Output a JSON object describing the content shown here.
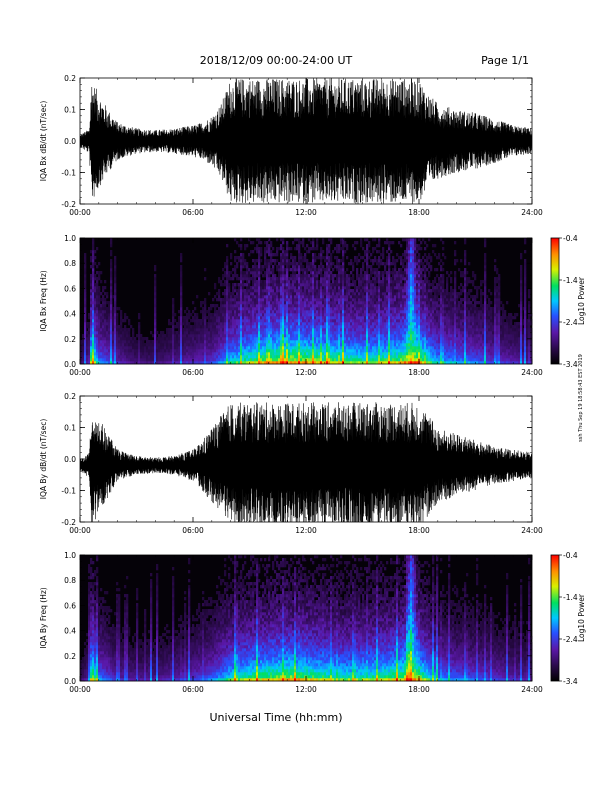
{
  "page": {
    "title": "2018/12/09   00:00-24:00 UT",
    "page_label": "Page 1/1",
    "side_stamp": "ssh Thu Sep 19 18:58:43 EST 2019",
    "xlabel": "Universal Time (hh:mm)"
  },
  "colors": {
    "trace": "#000000",
    "spectrogram_background": "#050208",
    "colorbar_stops": [
      "#000000",
      "#2a0a4a",
      "#5a18a8",
      "#2850ff",
      "#00c8ff",
      "#00e060",
      "#d8f000",
      "#ff9000",
      "#ff0000"
    ]
  },
  "chart_data": [
    {
      "type": "line",
      "name": "dBx/dt time series",
      "ylabel": "IQA Bx dB/dt (nT/sec)",
      "x_ticks": [
        "00:00",
        "06:00",
        "12:00",
        "18:00",
        "24:00"
      ],
      "xlim": [
        0,
        24
      ],
      "ylim": [
        -0.2,
        0.2
      ],
      "y_ticks": [
        -0.2,
        -0.1,
        0.0,
        0.1,
        0.2
      ],
      "y_tick_labels": [
        "-0.2",
        "-0.1",
        "0.0",
        "0.1",
        "0.2"
      ],
      "envelope_hours": [
        0,
        0.5,
        0.6,
        1.0,
        1.5,
        2.0,
        3.0,
        4.0,
        5.0,
        6.0,
        6.5,
        7.0,
        7.5,
        8.0,
        8.5,
        9.0,
        10.0,
        11.0,
        12.0,
        13.0,
        14.0,
        15.0,
        16.0,
        16.5,
        17.0,
        17.5,
        18.0,
        18.5,
        19.0,
        20.0,
        21.0,
        22.0,
        23.0,
        24.0
      ],
      "envelope_amplitude": [
        0.02,
        0.04,
        0.2,
        0.15,
        0.1,
        0.06,
        0.04,
        0.035,
        0.04,
        0.05,
        0.06,
        0.08,
        0.12,
        0.2,
        0.2,
        0.2,
        0.2,
        0.2,
        0.2,
        0.2,
        0.2,
        0.2,
        0.2,
        0.2,
        0.2,
        0.2,
        0.2,
        0.15,
        0.12,
        0.1,
        0.09,
        0.07,
        0.05,
        0.04
      ],
      "baseline": 0.0
    },
    {
      "type": "heatmap",
      "name": "Bx spectrogram",
      "ylabel": "IQA Bx Freq (Hz)",
      "x_ticks": [
        "00:00",
        "06:00",
        "12:00",
        "18:00",
        "24:00"
      ],
      "xlim": [
        0,
        24
      ],
      "ylim": [
        0.0,
        1.0
      ],
      "y_ticks": [
        0.0,
        0.2,
        0.4,
        0.6,
        0.8,
        1.0
      ],
      "y_tick_labels": [
        "0.0",
        "0.2",
        "0.4",
        "0.6",
        "0.8",
        "1.0"
      ],
      "colorbar": {
        "label": "Log10 Power",
        "min": -3.4,
        "max": -0.4,
        "ticks": [
          -3.4,
          -2.4,
          -1.4,
          -0.4
        ],
        "tick_labels": [
          "-3.4",
          "-2.4",
          "-1.4",
          "-0.4"
        ]
      },
      "activity_hours": [
        0,
        0.5,
        0.6,
        1.0,
        2.0,
        3.0,
        4.0,
        5.0,
        6.0,
        7.0,
        8.0,
        9.0,
        10.0,
        11.0,
        12.0,
        13.0,
        14.0,
        15.0,
        16.0,
        17.0,
        17.5,
        18.0,
        18.5,
        19.0,
        20.0,
        21.0,
        22.0,
        23.0,
        24.0
      ],
      "activity_level": [
        0.15,
        0.3,
        0.9,
        0.5,
        0.3,
        0.2,
        0.2,
        0.25,
        0.3,
        0.35,
        0.6,
        0.75,
        0.85,
        0.9,
        0.85,
        0.8,
        0.75,
        0.7,
        0.75,
        0.8,
        0.95,
        0.9,
        0.7,
        0.55,
        0.5,
        0.45,
        0.35,
        0.3,
        0.25
      ],
      "bright_hour": 17.6,
      "value_range": [
        -3.4,
        -0.4
      ]
    },
    {
      "type": "line",
      "name": "dBy/dt time series",
      "ylabel": "IQA By dB/dt (nT/sec)",
      "x_ticks": [
        "00:00",
        "06:00",
        "12:00",
        "18:00",
        "24:00"
      ],
      "xlim": [
        0,
        24
      ],
      "ylim": [
        -0.2,
        0.2
      ],
      "y_ticks": [
        -0.2,
        -0.1,
        0.0,
        0.1,
        0.2
      ],
      "y_tick_labels": [
        "-0.2",
        "-0.1",
        "0.0",
        "0.1",
        "0.2"
      ],
      "envelope_hours": [
        0,
        0.5,
        0.6,
        1.0,
        1.5,
        2.0,
        3.0,
        4.0,
        5.0,
        6.0,
        6.5,
        7.0,
        7.5,
        8.0,
        8.5,
        9.0,
        10.0,
        11.0,
        12.0,
        13.0,
        14.0,
        15.0,
        16.0,
        16.5,
        17.0,
        17.5,
        18.0,
        18.5,
        19.0,
        20.0,
        21.0,
        22.0,
        23.0,
        24.0
      ],
      "envelope_amplitude": [
        0.02,
        0.04,
        0.2,
        0.15,
        0.1,
        0.05,
        0.03,
        0.025,
        0.03,
        0.05,
        0.08,
        0.12,
        0.16,
        0.2,
        0.2,
        0.2,
        0.2,
        0.2,
        0.2,
        0.2,
        0.2,
        0.2,
        0.2,
        0.2,
        0.2,
        0.2,
        0.2,
        0.16,
        0.12,
        0.1,
        0.08,
        0.06,
        0.05,
        0.04
      ],
      "baseline": -0.02
    },
    {
      "type": "heatmap",
      "name": "By spectrogram",
      "ylabel": "IQA By Freq (Hz)",
      "x_ticks": [
        "00:00",
        "06:00",
        "12:00",
        "18:00",
        "24:00"
      ],
      "xlim": [
        0,
        24
      ],
      "ylim": [
        0.0,
        1.0
      ],
      "y_ticks": [
        0.0,
        0.2,
        0.4,
        0.6,
        0.8,
        1.0
      ],
      "y_tick_labels": [
        "0.0",
        "0.2",
        "0.4",
        "0.6",
        "0.8",
        "1.0"
      ],
      "colorbar": {
        "label": "Log10 Power",
        "min": -3.4,
        "max": -0.4,
        "ticks": [
          -3.4,
          -2.4,
          -1.4,
          -0.4
        ],
        "tick_labels": [
          "-3.4",
          "-2.4",
          "-1.4",
          "-0.4"
        ]
      },
      "activity_hours": [
        0,
        0.5,
        0.6,
        1.0,
        2.0,
        3.0,
        4.0,
        5.0,
        6.0,
        7.0,
        8.0,
        9.0,
        10.0,
        11.0,
        12.0,
        13.0,
        14.0,
        15.0,
        16.0,
        17.0,
        17.5,
        18.0,
        18.5,
        19.0,
        20.0,
        21.0,
        22.0,
        23.0,
        24.0
      ],
      "activity_level": [
        0.15,
        0.3,
        0.9,
        0.5,
        0.3,
        0.25,
        0.25,
        0.3,
        0.35,
        0.45,
        0.65,
        0.75,
        0.8,
        0.85,
        0.8,
        0.75,
        0.7,
        0.7,
        0.75,
        0.8,
        0.95,
        0.85,
        0.65,
        0.5,
        0.45,
        0.4,
        0.35,
        0.3,
        0.25
      ],
      "bright_hour": 17.6,
      "value_range": [
        -3.4,
        -0.4
      ]
    }
  ]
}
